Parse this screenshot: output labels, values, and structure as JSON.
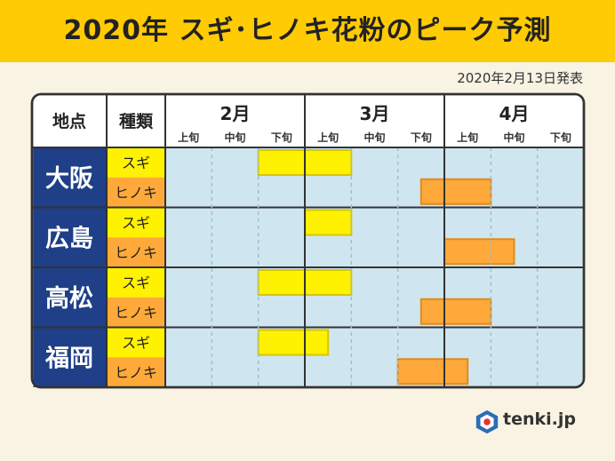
{
  "title": "2020年 スギ･ヒノキ花粉のピーク予測",
  "published": "2020年2月13日発表",
  "brand": "tenki.jp",
  "headers": {
    "location": "地点",
    "kind": "種類"
  },
  "months": [
    "2月",
    "3月",
    "4月"
  ],
  "periods": [
    "上旬",
    "中旬",
    "下旬",
    "上旬",
    "中旬",
    "下旬",
    "上旬",
    "中旬",
    "下旬"
  ],
  "colors": {
    "sugi": "#fff200",
    "hinoki": "#ffa93a",
    "grid_bg": "#cfe6f0",
    "city_bg": "#1f3f88",
    "kind_sugi_bg": "#fff200",
    "kind_hinoki_bg": "#ffa93a"
  },
  "chart_data": {
    "type": "gantt",
    "x_unit": "10-day period (旬)",
    "x_range": [
      "2月上旬",
      "4月下旬"
    ],
    "rows": [
      {
        "location": "大阪",
        "series": [
          {
            "name": "スギ",
            "start": "2月下旬",
            "end": "3月中旬"
          },
          {
            "name": "ヒノキ",
            "start": "3月下旬",
            "end": "4月上旬"
          }
        ]
      },
      {
        "location": "広島",
        "series": [
          {
            "name": "スギ",
            "start": "3月上旬",
            "end": "3月中旬"
          },
          {
            "name": "ヒノキ",
            "start": "4月上旬",
            "end": "4月中旬"
          }
        ]
      },
      {
        "location": "高松",
        "series": [
          {
            "name": "スギ",
            "start": "2月下旬",
            "end": "3月中旬"
          },
          {
            "name": "ヒノキ",
            "start": "3月下旬",
            "end": "4月上旬"
          }
        ]
      },
      {
        "location": "福岡",
        "series": [
          {
            "name": "スギ",
            "start": "2月下旬",
            "end": "3月上旬"
          },
          {
            "name": "ヒノキ",
            "start": "3月下旬",
            "end": "4月上旬"
          }
        ]
      }
    ],
    "bar_spans": [
      [
        [
          2.0,
          4.0
        ],
        [
          5.5,
          7.0
        ]
      ],
      [
        [
          3.0,
          4.0
        ],
        [
          6.0,
          7.5
        ]
      ],
      [
        [
          2.0,
          4.0
        ],
        [
          5.5,
          7.0
        ]
      ],
      [
        [
          2.0,
          3.5
        ],
        [
          5.0,
          6.5
        ]
      ]
    ]
  }
}
